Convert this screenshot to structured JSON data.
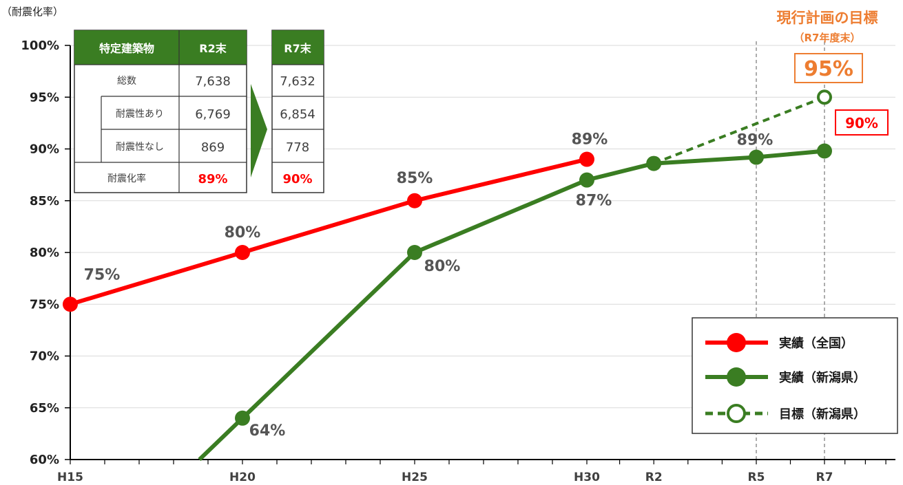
{
  "chart_data": {
    "type": "line",
    "ylabel": "（耐震化率）",
    "ylim": [
      60,
      100
    ],
    "y_ticks": [
      "60%",
      "65%",
      "70%",
      "75%",
      "80%",
      "85%",
      "90%",
      "95%",
      "100%"
    ],
    "x_range": [
      15,
      35
    ],
    "x_ticks": [
      {
        "label": "H15",
        "x": 15
      },
      {
        "label": "H20",
        "x": 20
      },
      {
        "label": "H25",
        "x": 25
      },
      {
        "label": "H30",
        "x": 30
      },
      {
        "label": "R2",
        "x": 32
      },
      {
        "label": "R5",
        "x": 35
      },
      {
        "label": "R7",
        "x": 37
      }
    ],
    "series": [
      {
        "name": "実績（全国）",
        "color": "#FF0000",
        "style": "solid",
        "marker": "filled",
        "points": [
          {
            "x": 15,
            "y": 75,
            "label": "75%"
          },
          {
            "x": 20,
            "y": 80,
            "label": "80%"
          },
          {
            "x": 25,
            "y": 85,
            "label": "85%"
          },
          {
            "x": 30,
            "y": 89,
            "label": "89%"
          }
        ]
      },
      {
        "name": "実績（新潟県）",
        "color": "#3A7D22",
        "style": "solid",
        "marker": "filled",
        "points": [
          {
            "x": 20,
            "y": 64,
            "label": "64%"
          },
          {
            "x": 25,
            "y": 80,
            "label": "80%"
          },
          {
            "x": 30,
            "y": 87,
            "label": "87%"
          },
          {
            "x": 32,
            "y": 88.6,
            "label": ""
          },
          {
            "x": 35,
            "y": 89.2,
            "label": "89%"
          },
          {
            "x": 37,
            "y": 89.8,
            "label": ""
          }
        ]
      },
      {
        "name": "目標（新潟県）",
        "color": "#3A7D22",
        "style": "dashed",
        "marker": "hollow",
        "points": [
          {
            "x": 32,
            "y": 88.6,
            "label": ""
          },
          {
            "x": 37,
            "y": 95,
            "label": ""
          }
        ]
      }
    ],
    "annotations": {
      "goal_title": "現行計画の目標",
      "goal_subtitle": "（R7年度末）",
      "goal_value": "95%",
      "r7_value": "90%"
    },
    "legend_position": "bottom-right",
    "grid": "horizontal"
  },
  "table": {
    "header": [
      "特定建築物",
      "R2末",
      "R7末"
    ],
    "rows": [
      {
        "label": "総数",
        "r2": "7,638",
        "r7": "7,632"
      },
      {
        "label": "耐震性あり",
        "r2": "6,769",
        "r7": "6,854"
      },
      {
        "label": "耐震性なし",
        "r2": "869",
        "r7": "778"
      },
      {
        "label": "耐震化率",
        "r2": "89%",
        "r7": "90%"
      }
    ],
    "colors": {
      "header_bg": "#3A7D22",
      "arrow": "#3A7D22",
      "highlight": "#FF0000"
    }
  }
}
